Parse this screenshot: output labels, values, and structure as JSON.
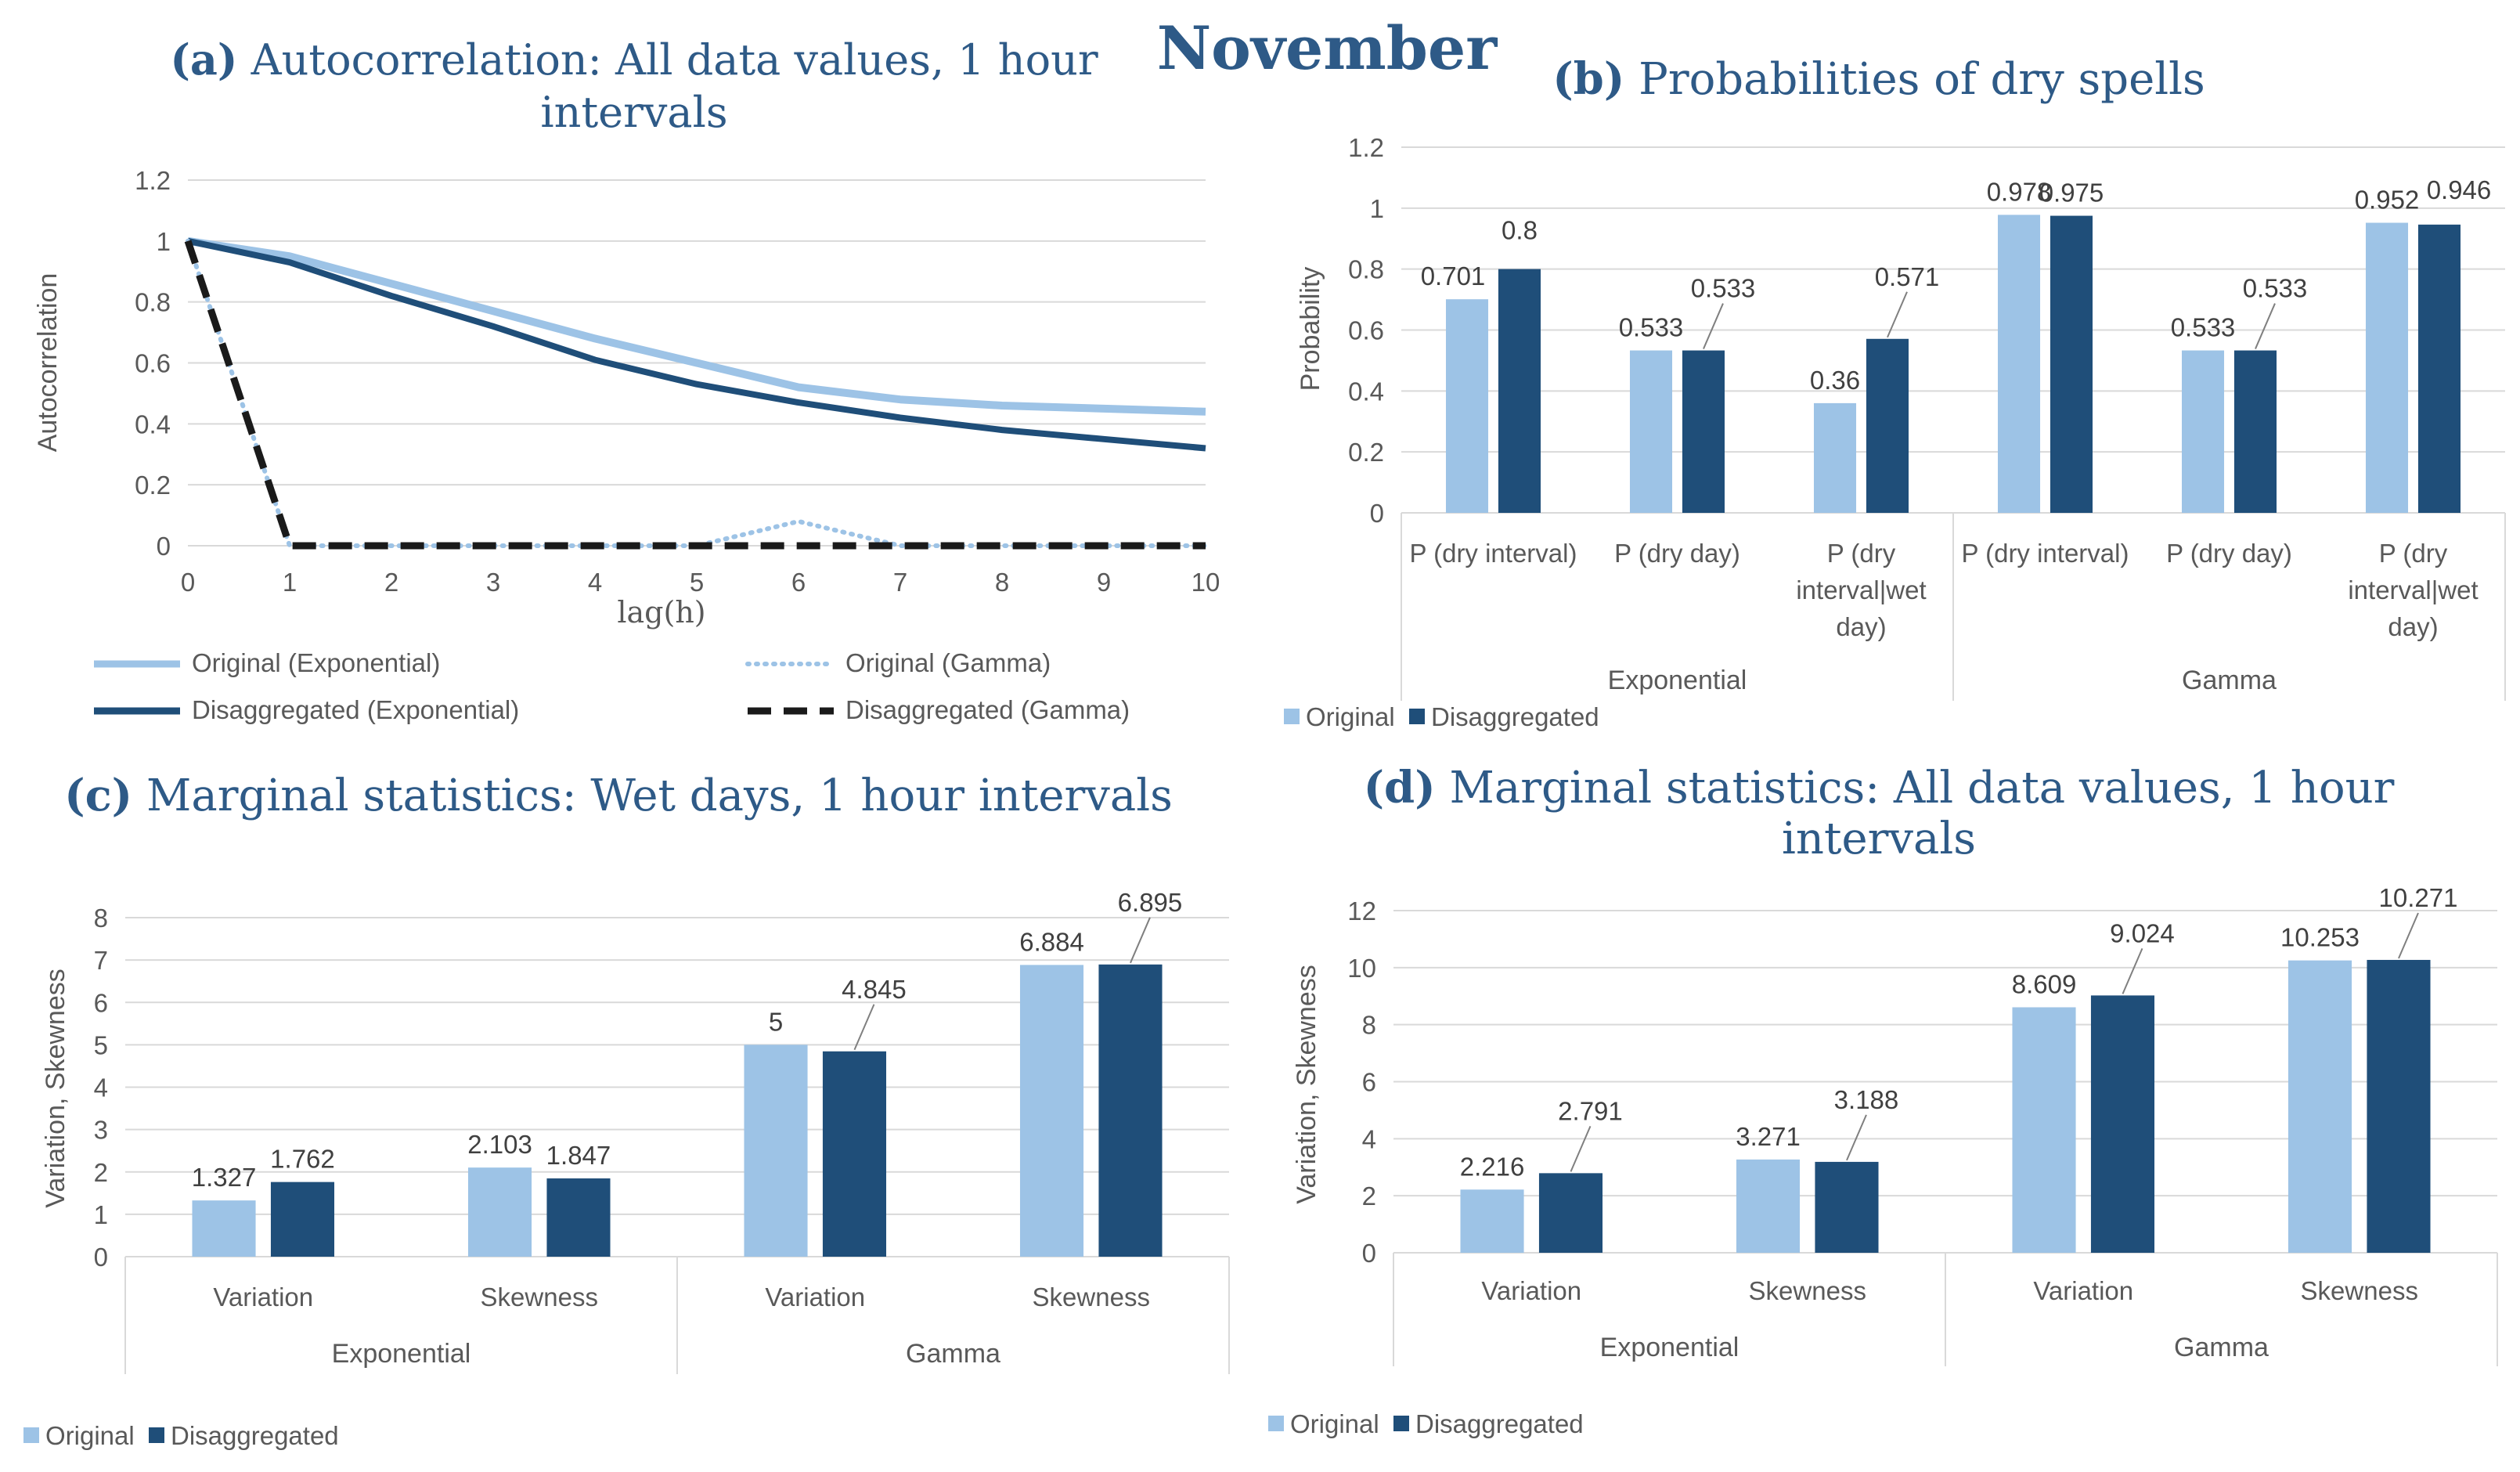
{
  "main_title": "November",
  "colors": {
    "original": "#9dc3e6",
    "disaggregated": "#1f4e79",
    "grid": "#d9d9d9",
    "text": "#595959",
    "title": "#2e5a87"
  },
  "chart_data": [
    {
      "id": "a",
      "type": "line",
      "title_prefix": "(a)",
      "title_line1": "Autocorrelation: All data values, 1 hour",
      "title_line2": "intervals",
      "xlabel": "lag(h)",
      "ylabel": "Autocorrelation",
      "x": [
        0,
        1,
        2,
        3,
        4,
        5,
        6,
        7,
        8,
        9,
        10
      ],
      "ylim": [
        0,
        1.2
      ],
      "yticks": [
        "0",
        "0.2",
        "0.4",
        "0.6",
        "0.8",
        "1",
        "1.2"
      ],
      "grid": true,
      "series": [
        {
          "name": "Original (Exponential)",
          "style": "solid",
          "color": "#9dc3e6",
          "values": [
            1,
            0.95,
            0.86,
            0.77,
            0.68,
            0.6,
            0.52,
            0.48,
            0.46,
            0.45,
            0.44
          ]
        },
        {
          "name": "Disaggregated (Exponential)",
          "style": "solid",
          "color": "#1f4e79",
          "values": [
            1,
            0.93,
            0.82,
            0.72,
            0.61,
            0.53,
            0.47,
            0.42,
            0.38,
            0.35,
            0.32
          ]
        },
        {
          "name": "Original (Gamma)",
          "style": "dotted",
          "color": "#9dc3e6",
          "values": [
            1,
            0,
            0,
            0,
            0,
            0,
            0.08,
            0,
            0,
            0,
            0
          ]
        },
        {
          "name": "Disaggregated (Gamma)",
          "style": "dashed",
          "color": "#1a1a1a",
          "values": [
            1,
            0,
            0,
            0,
            0,
            0,
            0,
            0,
            0,
            0,
            0
          ]
        }
      ]
    },
    {
      "id": "b",
      "type": "bar",
      "title_prefix": "(b)",
      "title_line1": "Probabilities of dry spells",
      "title_line2": "",
      "ylabel": "Probability",
      "ylim": [
        0,
        1.2
      ],
      "yticks": [
        "0",
        "0.2",
        "0.4",
        "0.6",
        "0.8",
        "1",
        "1.2"
      ],
      "grid": true,
      "categories": [
        [
          "P (dry interval)"
        ],
        [
          "P (dry day)"
        ],
        [
          "P (dry",
          "interval|wet",
          "day)"
        ],
        [
          "P (dry interval)"
        ],
        [
          "P (dry day)"
        ],
        [
          "P (dry",
          "interval|wet",
          "day)"
        ]
      ],
      "groups": [
        "Exponential",
        "Gamma"
      ],
      "series": [
        {
          "name": "Original",
          "values": [
            0.701,
            0.533,
            0.36,
            0.978,
            0.533,
            0.952
          ],
          "labels": [
            "0.701",
            "0.533",
            "0.36",
            "0.978",
            "0.533",
            "0.952"
          ]
        },
        {
          "name": "Disaggregated",
          "values": [
            0.8,
            0.533,
            0.571,
            0.975,
            0.533,
            0.946
          ],
          "labels": [
            "0.8",
            "0.533",
            "0.571",
            "0.975",
            "0.533",
            "0.946"
          ]
        }
      ]
    },
    {
      "id": "c",
      "type": "bar",
      "title_prefix": "(c)",
      "title_line1": "Marginal statistics: Wet days, 1 hour intervals",
      "title_line2": "",
      "ylabel": "Variation, Skewness",
      "ylim": [
        0,
        8
      ],
      "yticks": [
        "0",
        "1",
        "2",
        "3",
        "4",
        "5",
        "6",
        "7",
        "8"
      ],
      "grid": true,
      "categories": [
        [
          "Variation"
        ],
        [
          "Skewness"
        ],
        [
          "Variation"
        ],
        [
          "Skewness"
        ]
      ],
      "groups": [
        "Exponential",
        "Gamma"
      ],
      "series": [
        {
          "name": "Original",
          "values": [
            1.327,
            2.103,
            5,
            6.884
          ],
          "labels": [
            "1.327",
            "2.103",
            "5",
            "6.884"
          ]
        },
        {
          "name": "Disaggregated",
          "values": [
            1.762,
            1.847,
            4.845,
            6.895
          ],
          "labels": [
            "1.762",
            "1.847",
            "4.845",
            "6.895"
          ]
        }
      ]
    },
    {
      "id": "d",
      "type": "bar",
      "title_prefix": "(d)",
      "title_line1": "Marginal statistics: All data values, 1 hour",
      "title_line2": "intervals",
      "ylabel": "Variation, Skewness",
      "ylim": [
        0,
        12
      ],
      "yticks": [
        "0",
        "2",
        "4",
        "6",
        "8",
        "10",
        "12"
      ],
      "grid": true,
      "categories": [
        [
          "Variation"
        ],
        [
          "Skewness"
        ],
        [
          "Variation"
        ],
        [
          "Skewness"
        ]
      ],
      "groups": [
        "Exponential",
        "Gamma"
      ],
      "series": [
        {
          "name": "Original",
          "values": [
            2.216,
            3.271,
            8.609,
            10.253
          ],
          "labels": [
            "2.216",
            "3.271",
            "8.609",
            "10.253"
          ]
        },
        {
          "name": "Disaggregated",
          "values": [
            2.791,
            3.188,
            9.024,
            10.271
          ],
          "labels": [
            "2.791",
            "3.188",
            "9.024",
            "10.271"
          ]
        }
      ]
    }
  ]
}
